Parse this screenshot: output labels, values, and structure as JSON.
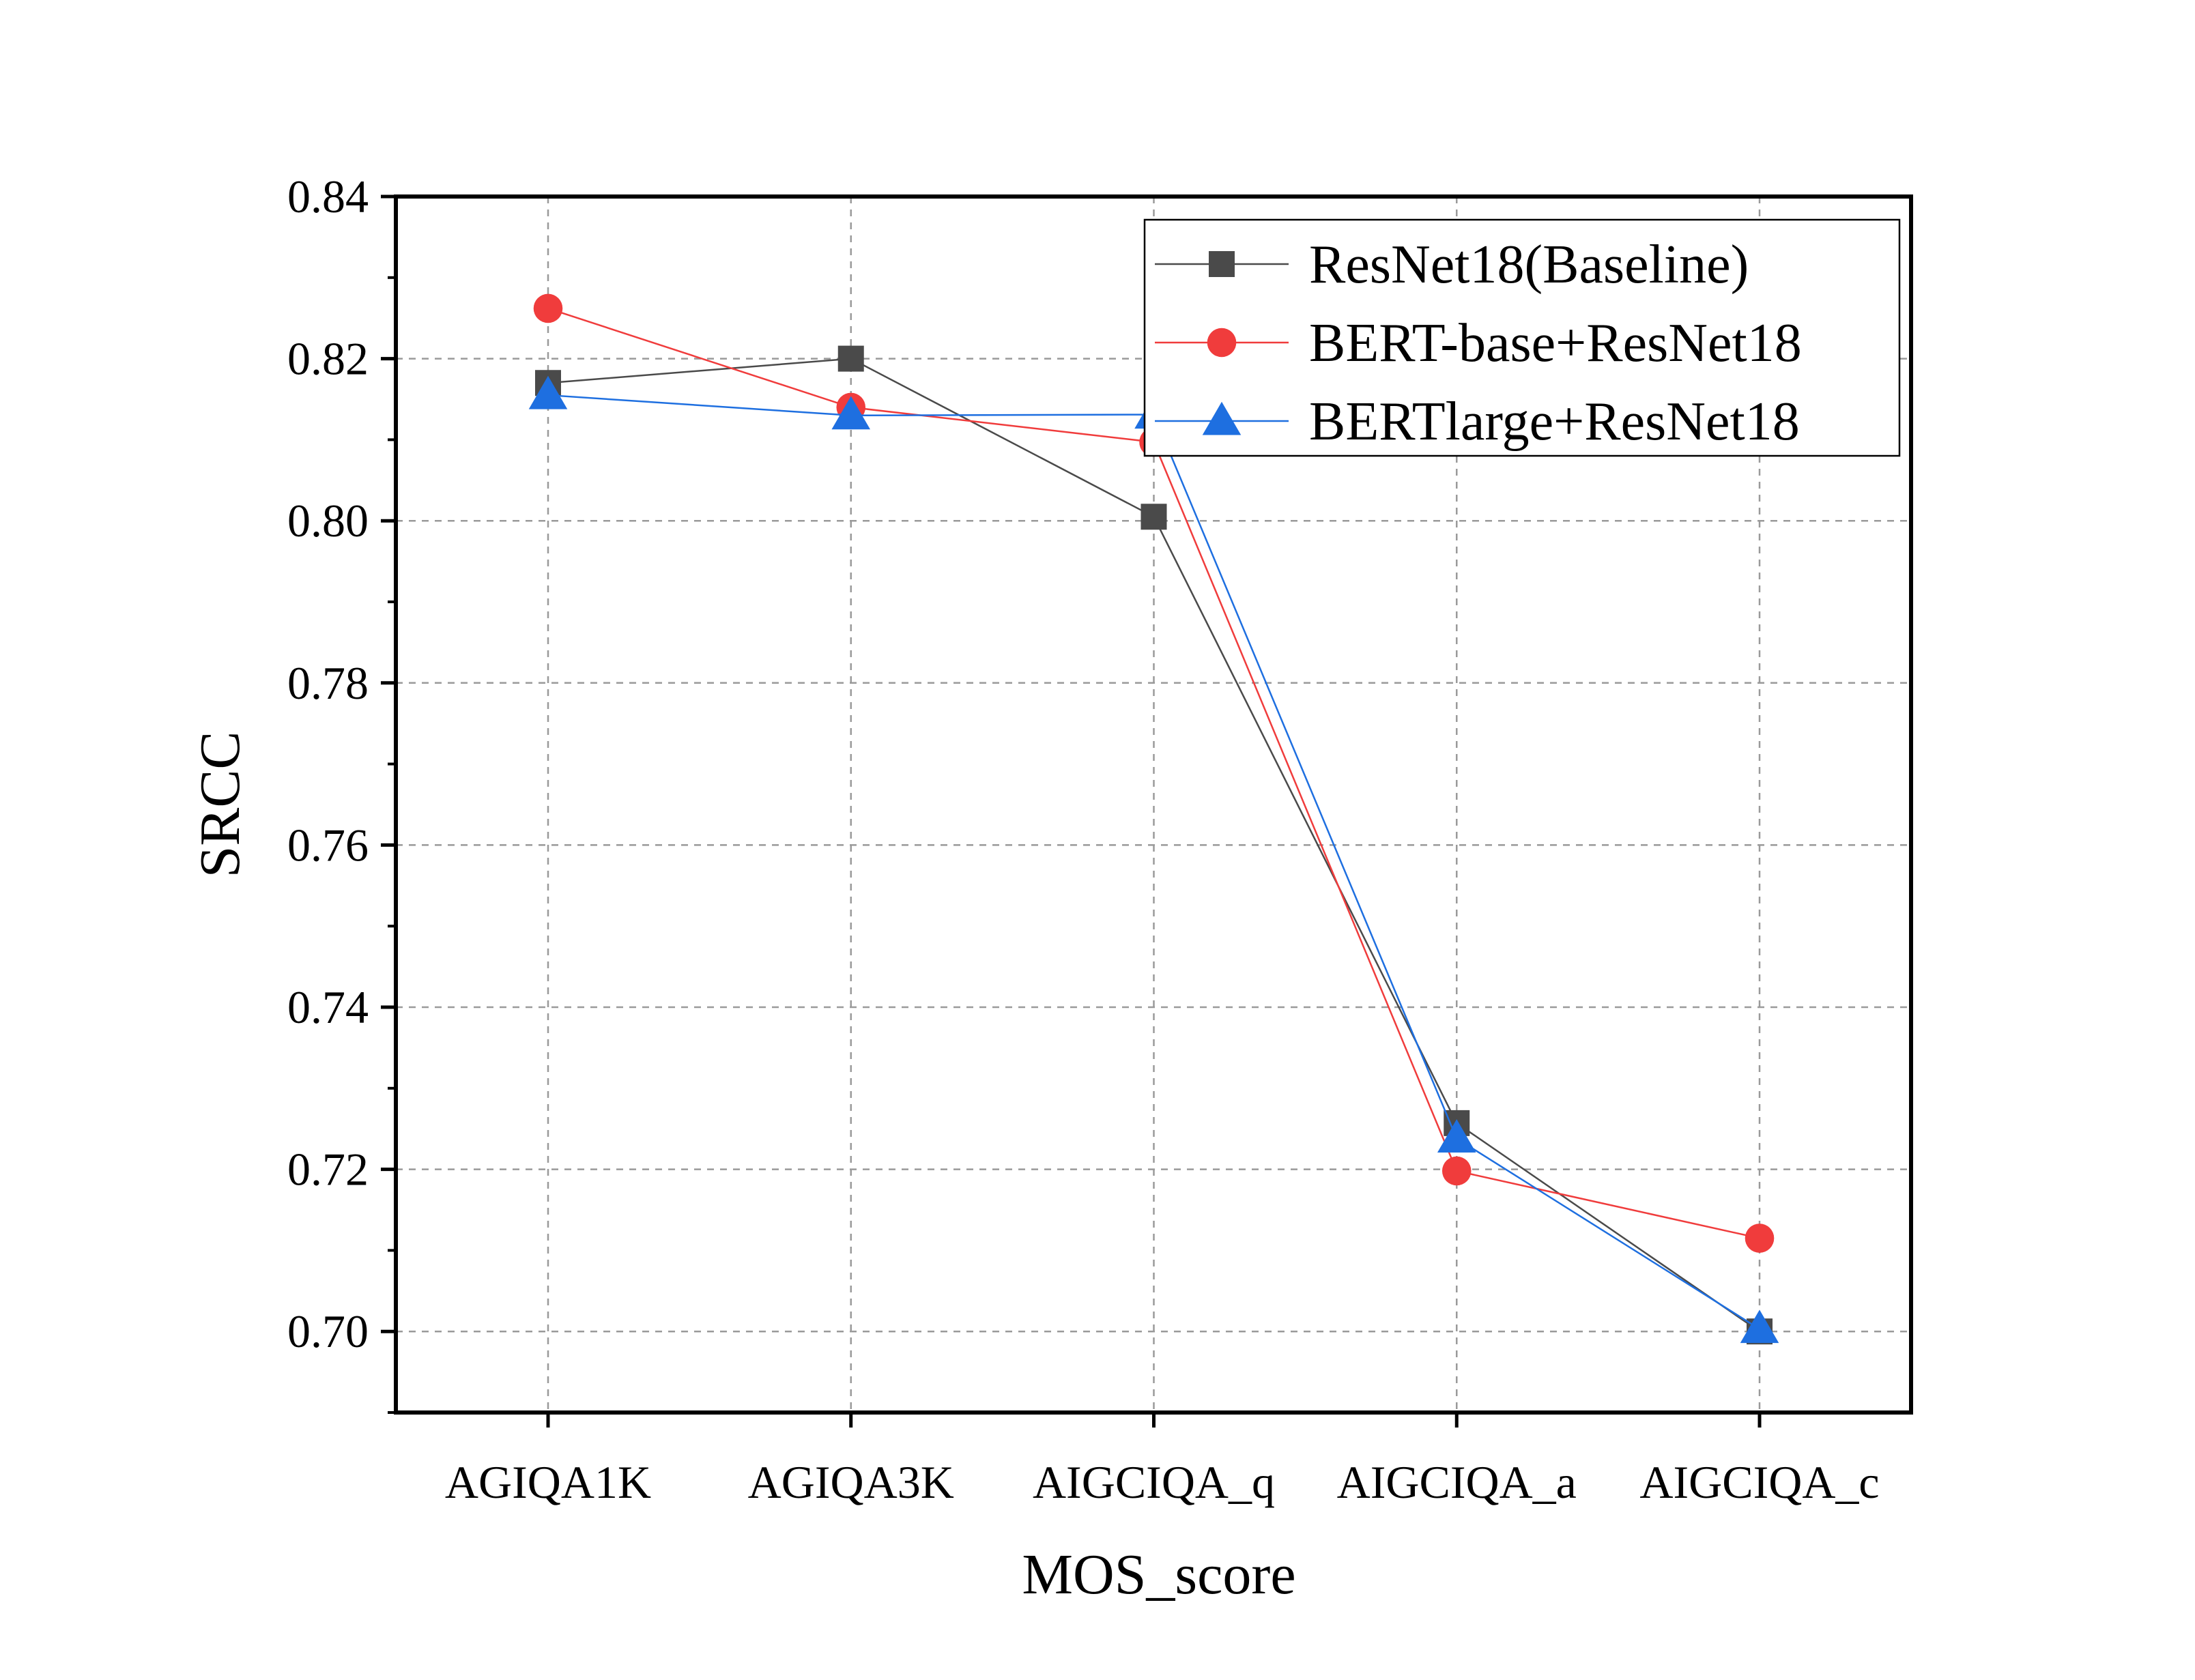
{
  "chart_data": {
    "type": "line",
    "xlabel": "MOS_score",
    "ylabel": "SRCC",
    "categories": [
      "AGIQA1K",
      "AGIQA3K",
      "AIGCIQA_q",
      "AIGCIQA_a",
      "AIGCIQA_c"
    ],
    "ylim": [
      0.69,
      0.84
    ],
    "yticks": [
      "0.70",
      "0.72",
      "0.74",
      "0.76",
      "0.78",
      "0.80",
      "0.82",
      "0.84"
    ],
    "grid": true,
    "legend_position": "top-right",
    "series": [
      {
        "name": "ResNet18(Baseline)",
        "color": "#4a4a4a",
        "marker": "square",
        "values": [
          0.817,
          0.82,
          0.8005,
          0.7257,
          0.7
        ]
      },
      {
        "name": "BERT-base+ResNet18",
        "color": "#f03c3c",
        "marker": "circle",
        "values": [
          0.8262,
          0.814,
          0.8097,
          0.7198,
          0.7115
        ]
      },
      {
        "name": "BERTlarge+ResNet18",
        "color": "#1e6fe0",
        "marker": "triangle",
        "values": [
          0.8155,
          0.813,
          0.8131,
          0.7238,
          0.7003
        ]
      }
    ]
  }
}
